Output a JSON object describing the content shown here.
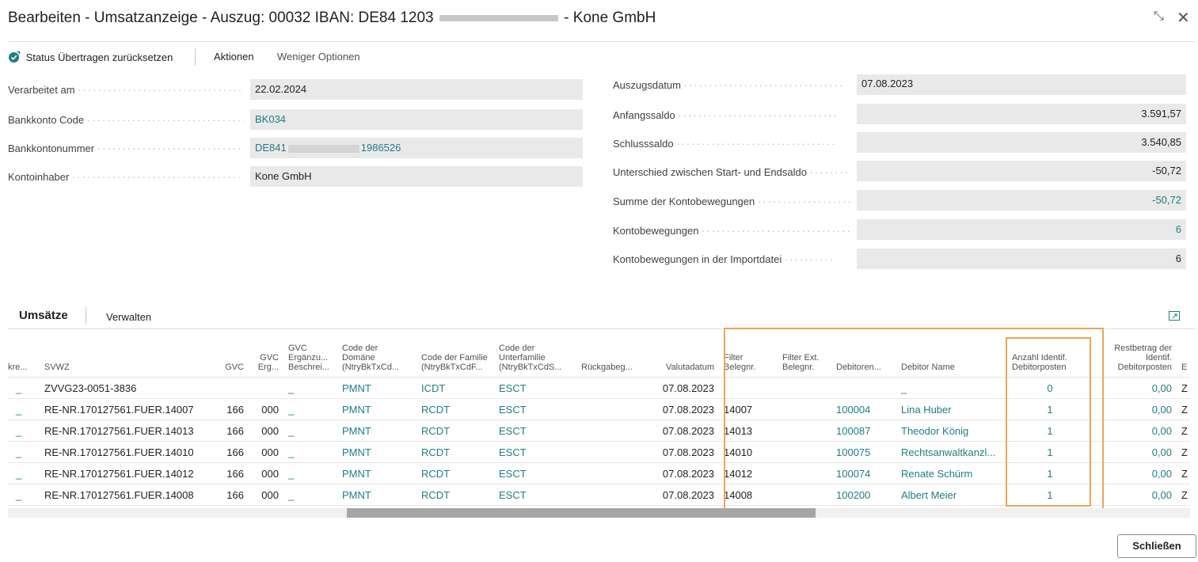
{
  "window": {
    "title_prefix": "Bearbeiten - Umsatzanzeige - Auszug: 00032 IBAN: DE84 1203",
    "title_suffix": "- Kone GmbH",
    "collapse_glyph": "⤡",
    "close_glyph": "✕"
  },
  "actions": {
    "reset_label": "Status Übertragen zurücksetzen",
    "aktionen_label": "Aktionen",
    "weniger_label": "Weniger Optionen"
  },
  "left_fields": {
    "verarbeitet_label": "Verarbeitet am",
    "verarbeitet_value": "22.02.2024",
    "bankkonto_code_label": "Bankkonto Code",
    "bankkonto_code_value": "BK034",
    "bankkontonummer_label": "Bankkontonummer",
    "bankkontonummer_prefix": "DE841",
    "bankkontonummer_suffix": "1986526",
    "kontoinhaber_label": "Kontoinhaber",
    "kontoinhaber_value": "Kone GmbH"
  },
  "right_fields": {
    "auszugsdatum_label": "Auszugsdatum",
    "auszugsdatum_value": "07.08.2023",
    "anfangssaldo_label": "Anfangssaldo",
    "anfangssaldo_value": "3.591,57",
    "schlusssaldo_label": "Schlusssaldo",
    "schlusssaldo_value": "3.540,85",
    "unterschied_label": "Unterschied zwischen Start- und Endsaldo",
    "unterschied_value": "-50,72",
    "summe_label": "Summe der Kontobewegungen",
    "summe_value": "-50,72",
    "kontobewegungen_label": "Kontobewegungen",
    "kontobewegungen_value": "6",
    "import_label": "Kontobewegungen in der Importdatei",
    "import_value": "6"
  },
  "lines": {
    "tab_umsaetze": "Umsätze",
    "tab_verwalten": "Verwalten",
    "columns": {
      "c0": "kre...",
      "c1": "SVWZ",
      "c2": "GVC",
      "c3": "GVC Erg...",
      "c4": "GVC Ergänzu... Beschrei...",
      "c5": "Code der Domäne (NtryBkTxCd...",
      "c6": "Code der Familie (NtryBkTxCdF...",
      "c7": "Code der Unterfamilie (NtryBkTxCdS...",
      "c8": "Rückgabeg...",
      "c9": "Valutadatum",
      "c10": "Filter Belegnr.",
      "c11": "Filter Ext. Belegnr.",
      "c12": "Debitoren...",
      "c13": "Debitor Name",
      "c14": "Anzahl Identif. Debitorposten",
      "c15": "Restbetrag der Identif. Debitorposten",
      "c16": "E"
    },
    "rows": [
      {
        "kre": "_",
        "svwz": "ZVVG23-0051-3836",
        "gvc": "",
        "gvc_erg": "",
        "gvc_beschr": "_",
        "domaene": "PMNT",
        "familie": "ICDT",
        "unterfamilie": "ESCT",
        "rueckgabe": "",
        "valuta": "07.08.2023",
        "filter_beleg": "",
        "filter_ext": "",
        "debitor_nr": "",
        "debitor_name": "_",
        "anzahl": "0",
        "restbetrag": "0,00",
        "e": "Z"
      },
      {
        "kre": "_",
        "svwz": "RE-NR.170127561.FUER.14007",
        "gvc": "166",
        "gvc_erg": "000",
        "gvc_beschr": "_",
        "domaene": "PMNT",
        "familie": "RCDT",
        "unterfamilie": "ESCT",
        "rueckgabe": "",
        "valuta": "07.08.2023",
        "filter_beleg": "14007",
        "filter_ext": "",
        "debitor_nr": "100004",
        "debitor_name": "Lina Huber",
        "anzahl": "1",
        "restbetrag": "0,00",
        "e": "Z"
      },
      {
        "kre": "_",
        "svwz": "RE-NR.170127561.FUER.14013",
        "gvc": "166",
        "gvc_erg": "000",
        "gvc_beschr": "_",
        "domaene": "PMNT",
        "familie": "RCDT",
        "unterfamilie": "ESCT",
        "rueckgabe": "",
        "valuta": "07.08.2023",
        "filter_beleg": "14013",
        "filter_ext": "",
        "debitor_nr": "100087",
        "debitor_name": "Theodor König",
        "anzahl": "1",
        "restbetrag": "0,00",
        "e": "Z"
      },
      {
        "kre": "_",
        "svwz": "RE-NR.170127561.FUER.14010",
        "gvc": "166",
        "gvc_erg": "000",
        "gvc_beschr": "_",
        "domaene": "PMNT",
        "familie": "RCDT",
        "unterfamilie": "ESCT",
        "rueckgabe": "",
        "valuta": "07.08.2023",
        "filter_beleg": "14010",
        "filter_ext": "",
        "debitor_nr": "100075",
        "debitor_name": "Rechtsanwaltkanzl...",
        "anzahl": "1",
        "restbetrag": "0,00",
        "e": "Z"
      },
      {
        "kre": "_",
        "svwz": "RE-NR.170127561.FUER.14012",
        "gvc": "166",
        "gvc_erg": "000",
        "gvc_beschr": "_",
        "domaene": "PMNT",
        "familie": "RCDT",
        "unterfamilie": "ESCT",
        "rueckgabe": "",
        "valuta": "07.08.2023",
        "filter_beleg": "14012",
        "filter_ext": "",
        "debitor_nr": "100074",
        "debitor_name": "Renate Schürm",
        "anzahl": "1",
        "restbetrag": "0,00",
        "e": "Z"
      },
      {
        "kre": "_",
        "svwz": "RE-NR.170127561.FUER.14008",
        "gvc": "166",
        "gvc_erg": "000",
        "gvc_beschr": "_",
        "domaene": "PMNT",
        "familie": "RCDT",
        "unterfamilie": "ESCT",
        "rueckgabe": "",
        "valuta": "07.08.2023",
        "filter_beleg": "14008",
        "filter_ext": "",
        "debitor_nr": "100200",
        "debitor_name": "Albert Meier",
        "anzahl": "1",
        "restbetrag": "0,00",
        "e": "Z"
      }
    ]
  },
  "footer": {
    "close_label": "Schließen"
  },
  "colors": {
    "accent": "#1e7d84",
    "highlight": "#e8a65b",
    "field_bg": "#e9e9e9"
  },
  "icons": {
    "reset": "reset-status-icon",
    "collapse": "collapse-icon",
    "close": "close-icon",
    "expand_grid": "expand-grid-icon"
  }
}
